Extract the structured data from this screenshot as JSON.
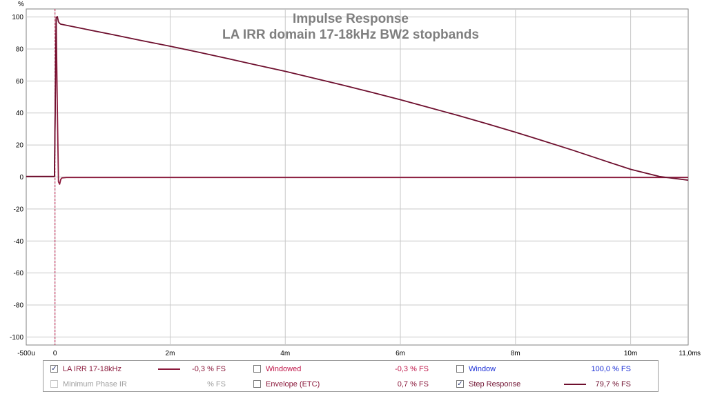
{
  "chart_data": {
    "type": "line",
    "title": "Impulse Response",
    "subtitle": "LA IRR domain 17-18kHz BW2 stopbands",
    "y_unit_label": "%",
    "x_unit_label": "s",
    "xlim": [
      -0.0005,
      0.011
    ],
    "ylim": [
      -105,
      105
    ],
    "grid": true,
    "x_ticks": [
      {
        "v": -0.0005,
        "label": "-500u"
      },
      {
        "v": 0,
        "label": "0"
      },
      {
        "v": 0.002,
        "label": "2m"
      },
      {
        "v": 0.004,
        "label": "4m"
      },
      {
        "v": 0.006,
        "label": "6m"
      },
      {
        "v": 0.008,
        "label": "8m"
      },
      {
        "v": 0.01,
        "label": "10m"
      },
      {
        "v": 0.011,
        "label": "11,0m"
      }
    ],
    "y_ticks": [
      {
        "v": 100,
        "label": "100"
      },
      {
        "v": 80,
        "label": "80"
      },
      {
        "v": 60,
        "label": "60"
      },
      {
        "v": 40,
        "label": "40"
      },
      {
        "v": 20,
        "label": "20"
      },
      {
        "v": 0,
        "label": "0"
      },
      {
        "v": -20,
        "label": "-20"
      },
      {
        "v": -40,
        "label": "-40"
      },
      {
        "v": -60,
        "label": "-60"
      },
      {
        "v": -80,
        "label": "-80"
      },
      {
        "v": -100,
        "label": "-100"
      }
    ],
    "marker_x": 0,
    "series": [
      {
        "name": "LA IRR 17-18kHz",
        "color": "#8b1a3c",
        "points": [
          [
            -0.0005,
            0.3
          ],
          [
            -1e-05,
            0.3
          ],
          [
            2e-05,
            98
          ],
          [
            4e-05,
            45
          ],
          [
            6e-05,
            -3
          ],
          [
            8e-05,
            -4.5
          ],
          [
            0.0001,
            -1.5
          ],
          [
            0.00012,
            -0.6
          ],
          [
            0.0002,
            -0.3
          ],
          [
            0.011,
            -0.3
          ]
        ]
      },
      {
        "name": "Step Response",
        "color": "#6e0f2e",
        "points": [
          [
            -0.0005,
            0.3
          ],
          [
            -1e-05,
            0.3
          ],
          [
            2e-05,
            99.5
          ],
          [
            4e-05,
            100.3
          ],
          [
            6e-05,
            97
          ],
          [
            8e-05,
            96
          ],
          [
            0.0001,
            95.5
          ],
          [
            0.0005,
            92.6
          ],
          [
            0.001,
            89.0
          ],
          [
            0.0015,
            85.3
          ],
          [
            0.002,
            81.7
          ],
          [
            0.0025,
            77.9
          ],
          [
            0.003,
            74.0
          ],
          [
            0.0035,
            70.0
          ],
          [
            0.004,
            66.0
          ],
          [
            0.0045,
            61.7
          ],
          [
            0.005,
            57.4
          ],
          [
            0.0055,
            52.9
          ],
          [
            0.006,
            48.3
          ],
          [
            0.0065,
            43.4
          ],
          [
            0.007,
            38.5
          ],
          [
            0.0075,
            33.3
          ],
          [
            0.008,
            28.0
          ],
          [
            0.0085,
            22.4
          ],
          [
            0.009,
            16.7
          ],
          [
            0.0095,
            10.7
          ],
          [
            0.01,
            4.8
          ],
          [
            0.0105,
            0.3
          ],
          [
            0.011,
            -2.0
          ]
        ]
      }
    ]
  },
  "legend": {
    "items": [
      {
        "label": "LA IRR 17-18kHz",
        "checked": true,
        "enabled": true,
        "value": "-0,3 % FS",
        "label_color": "#8b1a3c",
        "value_color": "#8b1a3c",
        "swatch": "#8b1a3c"
      },
      {
        "label": "Windowed",
        "checked": false,
        "enabled": true,
        "value": "-0,3 % FS",
        "label_color": "#c0174a",
        "value_color": "#c0174a",
        "swatch": ""
      },
      {
        "label": "Window",
        "checked": false,
        "enabled": true,
        "value": "100,0 % FS",
        "label_color": "#1a2ed6",
        "value_color": "#1a2ed6",
        "swatch": ""
      },
      {
        "label": "Minimum Phase IR",
        "checked": false,
        "enabled": false,
        "value": "% FS",
        "label_color": "#a0a0a0",
        "value_color": "#a0a0a0",
        "swatch": ""
      },
      {
        "label": "Envelope (ETC)",
        "checked": false,
        "enabled": true,
        "value": "0,7 % FS",
        "label_color": "#8b1a3c",
        "value_color": "#8b1a3c",
        "swatch": ""
      },
      {
        "label": "Step Response",
        "checked": true,
        "enabled": true,
        "value": "79,7 % FS",
        "label_color": "#6e0f2e",
        "value_color": "#6e0f2e",
        "swatch": "#6e0f2e"
      }
    ]
  }
}
